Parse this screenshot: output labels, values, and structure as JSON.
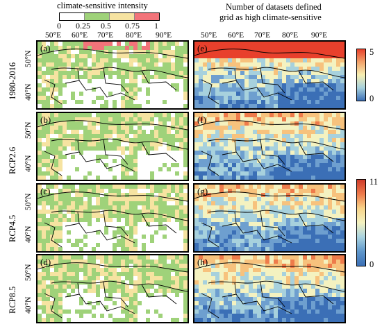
{
  "legend_top": {
    "title": "climate-sensitive intensity",
    "ticks": [
      "0",
      "0.25",
      "0.5",
      "0.75",
      "1"
    ],
    "colors": [
      "#ffffff",
      "#9fd27a",
      "#f6e3a1",
      "#f2747a"
    ]
  },
  "right_title": {
    "line1": "Number of datasets defined",
    "line2": "grid as high climate-sensitive"
  },
  "lon_ticks": [
    "50°E",
    "60°E",
    "70°E",
    "80°E",
    "90°E"
  ],
  "lat_ticks": [
    "50°N",
    "40°N"
  ],
  "rows": [
    {
      "label": "1980-2016",
      "left": "(a)",
      "right": "(e)"
    },
    {
      "label": "RCP2.6",
      "left": "(b)",
      "right": "(f)"
    },
    {
      "label": "RCP4.5",
      "left": "(c)",
      "right": "(g)"
    },
    {
      "label": "RCP8.5",
      "left": "(d)",
      "right": "(h)"
    }
  ],
  "colorbar_top": {
    "max": "5",
    "min": "0"
  },
  "colorbar_bottom": {
    "max": "11",
    "min": "0"
  },
  "colors": {
    "blue": "#3b6fb6",
    "red": "#e8402c",
    "green": "#9fd27a",
    "yellow": "#f6e3a1"
  }
}
